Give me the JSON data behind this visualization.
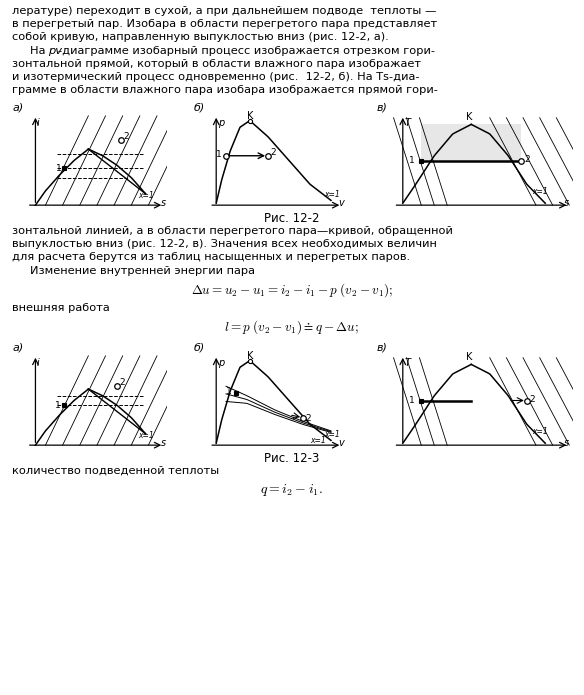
{
  "bg_color": "#ffffff",
  "fig_width": 5.84,
  "fig_height": 6.95,
  "dpi": 100,
  "line1": "лературе) переходит в сухой, а при дальнейшем подводе  теплоты —",
  "line2": "в перегретый пар. Изобара в области перегретого пара представляет",
  "line3": "собой кривую, направленную выпуклостью вниз (рис. 12-2, а).",
  "line5": "зонтальной прямой, который в области влажного пара изображает",
  "line6": "и изотермический процесс одновременно (рис.  12-2, б). На Тs-диа-",
  "line7": "грамме в области влажного пара изобара изображается прямой гори-",
  "ris22_caption": "Рис. 12-2",
  "line8": "зонтальной линией, а в области перегретого пара—кривой, обращенной",
  "line9": "выпуклостью вниз (рис. 12-2, в). Значения всех необходимых величин",
  "line10": "для расчета берутся из таблиц насыщенных и перегретых паров.",
  "line11": "Изменение внутренней энергии пара",
  "line12": "внешняя работа",
  "ris23_caption": "Рис. 12-3",
  "line13": "количество подведенной теплоты"
}
